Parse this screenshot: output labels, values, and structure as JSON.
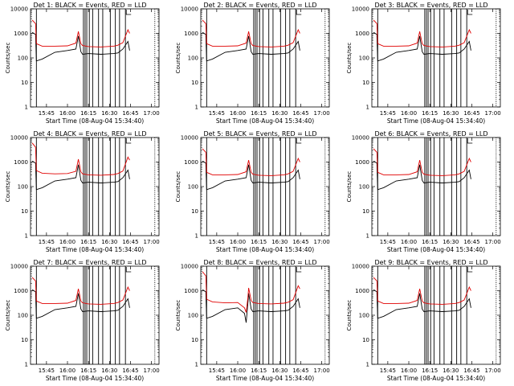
{
  "chart_data": {
    "type": "line",
    "yscale": "log",
    "ylim": [
      1,
      10000
    ],
    "y_ticks": [
      1,
      10,
      100,
      1000,
      10000
    ],
    "y_tick_labels": [
      "1",
      "10",
      "100",
      "1000",
      "10000"
    ],
    "x_tick_labels": [
      "15:45",
      "16:00",
      "16:15",
      "16:30",
      "16:45",
      "17:00"
    ],
    "xlabel": "Start Time (08-Aug-04 15:34:40)",
    "ylabel": "Counts/sec",
    "grid": false,
    "series_colors": {
      "events": "#000000",
      "lld": "#e00000"
    },
    "panels": [
      {
        "title": "Det 1: BLACK = Events, RED = LLD",
        "vlines": [
          15.63,
          16.19,
          16.21,
          16.23,
          16.26,
          16.3,
          16.37,
          16.42,
          16.51,
          16.57,
          16.62,
          16.69,
          17.04
        ],
        "dotted_lines": [
          17.04
        ],
        "x": [
          15.58,
          15.62,
          15.63,
          15.7,
          15.85,
          16.0,
          16.1,
          16.13,
          16.16,
          16.18,
          16.25,
          16.4,
          16.55,
          16.6,
          16.66,
          16.72,
          16.74
        ],
        "events": [
          1100,
          900,
          75,
          90,
          170,
          200,
          230,
          780,
          180,
          140,
          150,
          140,
          150,
          160,
          230,
          470,
          200
        ],
        "lld": [
          3500,
          2500,
          380,
          300,
          300,
          310,
          400,
          1200,
          380,
          320,
          290,
          280,
          300,
          330,
          420,
          1400,
          1000
        ]
      },
      {
        "title": "Det 2: BLACK = Events, RED = LLD",
        "vlines": [
          15.63,
          16.19,
          16.21,
          16.23,
          16.26,
          16.3,
          16.37,
          16.42,
          16.51,
          16.57,
          16.62,
          16.69,
          17.04
        ],
        "dotted_lines": [
          17.04
        ],
        "x": [
          15.58,
          15.62,
          15.63,
          15.7,
          15.85,
          16.0,
          16.1,
          16.13,
          16.16,
          16.18,
          16.25,
          16.4,
          16.55,
          16.6,
          16.66,
          16.72,
          16.74
        ],
        "events": [
          1100,
          900,
          75,
          90,
          170,
          200,
          230,
          780,
          180,
          140,
          150,
          140,
          150,
          160,
          230,
          470,
          200
        ],
        "lld": [
          3500,
          2500,
          380,
          300,
          300,
          310,
          400,
          1200,
          380,
          320,
          290,
          280,
          300,
          330,
          420,
          1400,
          1000
        ]
      },
      {
        "title": "Det 3: BLACK = Events, RED = LLD",
        "vlines": [
          15.63,
          16.19,
          16.21,
          16.23,
          16.26,
          16.3,
          16.37,
          16.42,
          16.51,
          16.57,
          16.62,
          16.69,
          17.04
        ],
        "dotted_lines": [
          17.04
        ],
        "x": [
          15.58,
          15.62,
          15.63,
          15.7,
          15.85,
          16.0,
          16.1,
          16.13,
          16.16,
          16.18,
          16.25,
          16.4,
          16.55,
          16.6,
          16.66,
          16.72,
          16.74
        ],
        "events": [
          1100,
          900,
          75,
          90,
          170,
          200,
          230,
          780,
          180,
          140,
          150,
          140,
          150,
          160,
          230,
          470,
          200
        ],
        "lld": [
          3500,
          2500,
          380,
          300,
          300,
          310,
          400,
          1200,
          380,
          320,
          290,
          280,
          300,
          330,
          420,
          1400,
          1000
        ]
      },
      {
        "title": "Det 4: BLACK = Events, RED = LLD",
        "vlines": [
          15.63,
          16.19,
          16.21,
          16.23,
          16.26,
          16.3,
          16.37,
          16.42,
          16.51,
          16.57,
          16.62,
          16.69,
          17.04
        ],
        "dotted_lines": [
          17.04
        ],
        "x": [
          15.58,
          15.62,
          15.63,
          15.7,
          15.85,
          16.0,
          16.1,
          16.13,
          16.16,
          16.18,
          16.25,
          16.4,
          16.55,
          16.6,
          16.66,
          16.72,
          16.74
        ],
        "events": [
          1100,
          900,
          75,
          90,
          170,
          200,
          230,
          780,
          180,
          140,
          150,
          140,
          150,
          160,
          230,
          470,
          200
        ],
        "lld": [
          6000,
          4000,
          450,
          350,
          330,
          340,
          420,
          1300,
          400,
          330,
          300,
          290,
          310,
          340,
          430,
          1600,
          1200
        ]
      },
      {
        "title": "Det 5: BLACK = Events, RED = LLD",
        "vlines": [
          15.63,
          16.19,
          16.21,
          16.23,
          16.26,
          16.3,
          16.37,
          16.42,
          16.51,
          16.57,
          16.62,
          16.69,
          17.04
        ],
        "dotted_lines": [
          17.04
        ],
        "x": [
          15.58,
          15.62,
          15.63,
          15.7,
          15.85,
          16.0,
          16.1,
          16.13,
          16.16,
          16.18,
          16.25,
          16.4,
          16.55,
          16.6,
          16.66,
          16.72,
          16.74
        ],
        "events": [
          1100,
          900,
          75,
          90,
          170,
          200,
          230,
          780,
          180,
          140,
          150,
          140,
          150,
          160,
          230,
          470,
          200
        ],
        "lld": [
          3500,
          2500,
          380,
          300,
          300,
          310,
          400,
          1200,
          380,
          320,
          290,
          280,
          300,
          330,
          420,
          1400,
          1000
        ]
      },
      {
        "title": "Det 6: BLACK = Events, RED = LLD",
        "vlines": [
          15.63,
          16.19,
          16.21,
          16.23,
          16.26,
          16.3,
          16.37,
          16.42,
          16.51,
          16.57,
          16.62,
          16.69,
          17.04
        ],
        "dotted_lines": [
          17.04
        ],
        "x": [
          15.58,
          15.62,
          15.63,
          15.7,
          15.85,
          16.0,
          16.1,
          16.13,
          16.16,
          16.18,
          16.25,
          16.4,
          16.55,
          16.6,
          16.66,
          16.72,
          16.74
        ],
        "events": [
          1100,
          900,
          75,
          90,
          170,
          200,
          230,
          780,
          180,
          140,
          150,
          140,
          150,
          160,
          230,
          470,
          200
        ],
        "lld": [
          3500,
          2500,
          380,
          300,
          300,
          310,
          400,
          1200,
          380,
          320,
          290,
          280,
          300,
          330,
          420,
          1400,
          1000
        ]
      },
      {
        "title": "Det 7: BLACK = Events, RED = LLD",
        "vlines": [
          15.63,
          16.19,
          16.21,
          16.23,
          16.26,
          16.3,
          16.37,
          16.42,
          16.51,
          16.57,
          16.62,
          16.69,
          17.04
        ],
        "dotted_lines": [
          17.04
        ],
        "x": [
          15.58,
          15.62,
          15.63,
          15.7,
          15.85,
          16.0,
          16.1,
          16.13,
          16.16,
          16.18,
          16.25,
          16.4,
          16.55,
          16.6,
          16.66,
          16.72,
          16.74
        ],
        "events": [
          1100,
          900,
          75,
          90,
          170,
          200,
          230,
          780,
          180,
          140,
          150,
          140,
          150,
          160,
          230,
          470,
          200
        ],
        "lld": [
          3500,
          2500,
          380,
          300,
          300,
          310,
          400,
          1200,
          380,
          320,
          290,
          280,
          300,
          330,
          420,
          1400,
          1000
        ]
      },
      {
        "title": "Det 8: BLACK = Events, RED = LLD",
        "vlines": [
          15.63,
          16.19,
          16.21,
          16.23,
          16.26,
          16.3,
          16.37,
          16.42,
          16.51,
          16.57,
          16.62,
          16.69,
          17.04
        ],
        "dotted_lines": [
          17.04
        ],
        "x": [
          15.58,
          15.62,
          15.63,
          15.7,
          15.85,
          16.0,
          16.08,
          16.1,
          16.12,
          16.13,
          16.16,
          16.18,
          16.25,
          16.4,
          16.55,
          16.6,
          16.66,
          16.72,
          16.74
        ],
        "events": [
          1100,
          900,
          75,
          90,
          170,
          200,
          120,
          50,
          300,
          780,
          180,
          140,
          150,
          140,
          150,
          160,
          230,
          470,
          200
        ],
        "lld": [
          6000,
          4000,
          450,
          350,
          320,
          330,
          200,
          130,
          500,
          1300,
          400,
          330,
          300,
          290,
          310,
          340,
          430,
          1600,
          1200
        ]
      },
      {
        "title": "Det 9: BLACK = Events, RED = LLD",
        "vlines": [
          15.63,
          16.19,
          16.21,
          16.23,
          16.26,
          16.3,
          16.37,
          16.42,
          16.51,
          16.57,
          16.62,
          16.69,
          17.04
        ],
        "dotted_lines": [
          17.04
        ],
        "x": [
          15.58,
          15.62,
          15.63,
          15.7,
          15.85,
          16.0,
          16.1,
          16.13,
          16.16,
          16.18,
          16.25,
          16.4,
          16.55,
          16.6,
          16.66,
          16.72,
          16.74
        ],
        "events": [
          1100,
          900,
          75,
          90,
          170,
          200,
          230,
          780,
          180,
          140,
          150,
          140,
          150,
          160,
          230,
          470,
          200
        ],
        "lld": [
          3500,
          2500,
          380,
          300,
          300,
          310,
          400,
          1200,
          380,
          320,
          290,
          280,
          300,
          330,
          420,
          1400,
          1000
        ]
      }
    ]
  }
}
